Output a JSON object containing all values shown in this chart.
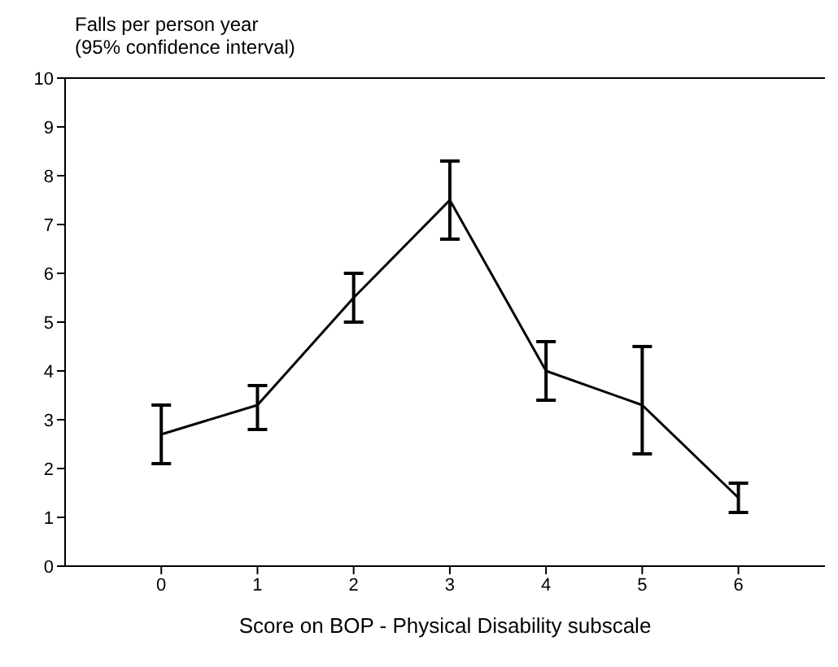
{
  "chart_data": {
    "type": "line",
    "ylabel": "Falls per person year\n(95% confidence interval)",
    "xlabel": "Score on BOP - Physical Disability subscale",
    "x": [
      0,
      1,
      2,
      3,
      4,
      5,
      6
    ],
    "series": [
      {
        "color": "#000000",
        "values": [
          2.7,
          3.3,
          5.5,
          7.5,
          4.0,
          3.3,
          1.4
        ],
        "errors": [
          [
            2.1,
            3.3
          ],
          [
            2.8,
            3.7
          ],
          [
            5.0,
            6.0
          ],
          [
            6.7,
            8.3
          ],
          [
            3.4,
            4.6
          ],
          [
            2.3,
            4.5
          ],
          [
            1.1,
            1.7
          ]
        ]
      }
    ],
    "xlim": [
      -1,
      6.9
    ],
    "xticks": [
      0,
      1,
      2,
      3,
      4,
      5,
      6
    ],
    "ylim": [
      0,
      10
    ],
    "yticks": [
      0,
      1,
      2,
      3,
      4,
      5,
      6,
      7,
      8,
      9,
      10
    ],
    "grid": false,
    "marker": "none",
    "line_style": "solid"
  }
}
